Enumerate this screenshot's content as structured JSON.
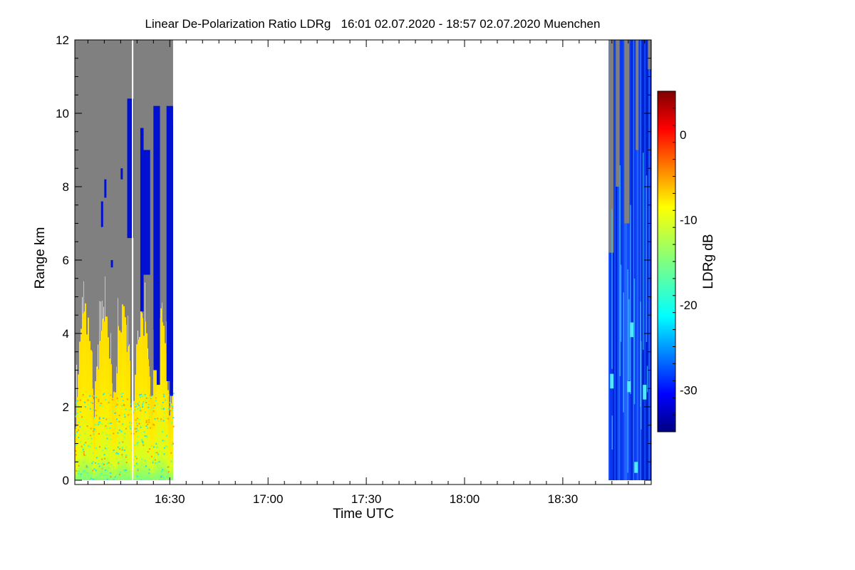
{
  "chart_data": {
    "type": "heatmap",
    "title": "Linear De-Polarization Ratio LDRg   16:01 02.07.2020 - 18:57 02.07.2020 Muenchen",
    "xlabel": "Time UTC",
    "ylabel": "Range km",
    "colorbar_label": "LDRg dB",
    "x_range": [
      "16:01",
      "18:57"
    ],
    "x_ticks": [
      "16:30",
      "17:00",
      "17:30",
      "18:00",
      "18:30"
    ],
    "ylim": [
      0,
      12
    ],
    "y_ticks": [
      0,
      2,
      4,
      6,
      8,
      10,
      12
    ],
    "colorbar_range": [
      -35,
      5
    ],
    "colorbar_ticks": [
      0,
      -10,
      -20,
      -30
    ],
    "colormap": "jet",
    "no_signal_color": "#808080",
    "data_blocks": [
      {
        "time_start": "16:01",
        "time_end": "16:31",
        "description": "low-level yellow/green depolarization up to about 3-5 km; gray (no signal) above; dark blue cloud streaks between about 16:17 and 16:31 up to about 11 km; a white gap near 16:18",
        "low_ldr_db": -10,
        "cloud_ldr_db": -33
      },
      {
        "time_start": "18:44",
        "time_end": "18:57",
        "description": "mostly blue signal from ground to about 12 km with lighter cyan streaks; gray above about 7 km in the first minutes",
        "ldr_db": -30
      }
    ]
  }
}
